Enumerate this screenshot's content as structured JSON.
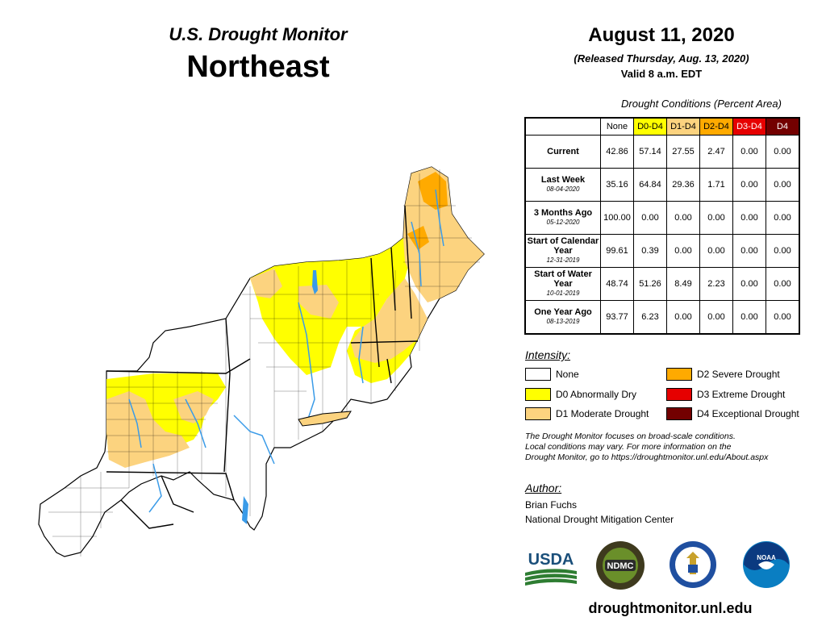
{
  "header": {
    "product": "U.S. Drought Monitor",
    "region": "Northeast",
    "date": "August 11, 2020",
    "released": "(Released Thursday, Aug. 13, 2020)",
    "valid": "Valid 8 a.m. EDT"
  },
  "table": {
    "caption": "Drought Conditions (Percent Area)",
    "columns": [
      "None",
      "D0-D4",
      "D1-D4",
      "D2-D4",
      "D3-D4",
      "D4"
    ],
    "column_colors": [
      "#ffffff",
      "#ffff00",
      "#fcd37f",
      "#ffaa00",
      "#e60000",
      "#730000"
    ],
    "rows": [
      {
        "label": "Current",
        "date": "",
        "values": [
          "42.86",
          "57.14",
          "27.55",
          "2.47",
          "0.00",
          "0.00"
        ]
      },
      {
        "label": "Last Week",
        "date": "08-04-2020",
        "values": [
          "35.16",
          "64.84",
          "29.36",
          "1.71",
          "0.00",
          "0.00"
        ]
      },
      {
        "label": "3 Months Ago",
        "date": "05-12-2020",
        "values": [
          "100.00",
          "0.00",
          "0.00",
          "0.00",
          "0.00",
          "0.00"
        ]
      },
      {
        "label": "Start of Calendar Year",
        "date": "12-31-2019",
        "values": [
          "99.61",
          "0.39",
          "0.00",
          "0.00",
          "0.00",
          "0.00"
        ]
      },
      {
        "label": "Start of Water Year",
        "date": "10-01-2019",
        "values": [
          "48.74",
          "51.26",
          "8.49",
          "2.23",
          "0.00",
          "0.00"
        ]
      },
      {
        "label": "One Year Ago",
        "date": "08-13-2019",
        "values": [
          "93.77",
          "6.23",
          "0.00",
          "0.00",
          "0.00",
          "0.00"
        ]
      }
    ]
  },
  "legend": {
    "heading": "Intensity:",
    "items": [
      {
        "label": "None",
        "color": "#ffffff"
      },
      {
        "label": "D0 Abnormally Dry",
        "color": "#ffff00"
      },
      {
        "label": "D1 Moderate Drought",
        "color": "#fcd37f"
      },
      {
        "label": "D2 Severe Drought",
        "color": "#ffaa00"
      },
      {
        "label": "D3 Extreme Drought",
        "color": "#e60000"
      },
      {
        "label": "D4 Exceptional Drought",
        "color": "#730000"
      }
    ]
  },
  "disclaimer": {
    "line1": "The Drought Monitor focuses on broad-scale conditions.",
    "line2": "Local conditions may vary. For more information on the",
    "line3": "Drought Monitor, go to https://droughtmonitor.unl.edu/About.aspx"
  },
  "author": {
    "heading": "Author:",
    "name": "Brian Fuchs",
    "org": "National Drought Mitigation Center"
  },
  "logos": {
    "usda": "USDA",
    "ndmc": "NDMC",
    "noaa": "NOAA"
  },
  "footer_url": "droughtmonitor.unl.edu",
  "colors": {
    "none": "#ffffff",
    "d0": "#ffff00",
    "d1": "#fcd37f",
    "d2": "#ffaa00",
    "water": "#3a9be8",
    "border": "#000000"
  }
}
